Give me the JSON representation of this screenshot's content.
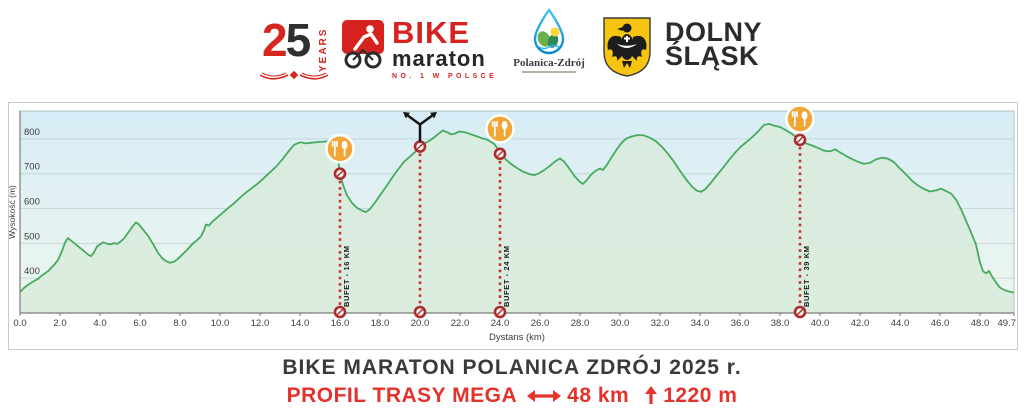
{
  "header": {
    "anniversary": {
      "number_left": "2",
      "number_right": "5",
      "years": "YEARS"
    },
    "bike": {
      "title": "BIKE",
      "subtitle": "maraton",
      "tagline": "NO. 1 W POLSCE"
    },
    "polanica": {
      "name": "Polanica-Zdrój"
    },
    "dolny": {
      "line1": "DOLNY",
      "line2": "ŚLĄSK"
    }
  },
  "footer": {
    "title": "BIKE MARATON POLANICA ZDRÓJ 2025 r.",
    "subtitle": "PROFIL TRASY MEGA",
    "distance": "48 km",
    "elevation_gain": "1220 m"
  },
  "chart_data": {
    "type": "area",
    "xlabel": "Dystans  (km)",
    "ylabel": "Wysokość (m)",
    "xlim": [
      0,
      49.7
    ],
    "ylim": [
      300,
      880
    ],
    "x_ticks": [
      0,
      2,
      4,
      6,
      8,
      10,
      12,
      14,
      16,
      18,
      20,
      22,
      24,
      26,
      28,
      30,
      32,
      34,
      36,
      38,
      40,
      42,
      44,
      46,
      48,
      49.7
    ],
    "y_ticks": [
      400,
      500,
      600,
      700,
      800
    ],
    "grid": true,
    "colors": {
      "line": "#46ab5e",
      "fill": "#d9ecdd",
      "bg_top": "#d7ecf6",
      "bg_bottom": "#eef7ef",
      "marker": "#c5312b",
      "dot_ring": "#ad2a2d",
      "buffet": "#f2a434",
      "grid": "#c6d6da"
    },
    "markers": [
      {
        "km": 16,
        "elevation": 700,
        "type": "buffet",
        "label": "BUFET - 16 KM"
      },
      {
        "km": 20,
        "elevation": 778,
        "type": "junction",
        "label": ""
      },
      {
        "km": 24,
        "elevation": 757,
        "type": "buffet",
        "label": "BUFET - 24 KM"
      },
      {
        "km": 39,
        "elevation": 797,
        "type": "buffet",
        "label": "BUFET - 39 KM"
      }
    ],
    "points": [
      [
        0,
        360
      ],
      [
        0.2,
        372
      ],
      [
        0.45,
        383
      ],
      [
        0.7,
        392
      ],
      [
        0.9,
        398
      ],
      [
        1.1,
        408
      ],
      [
        1.4,
        420
      ],
      [
        1.7,
        438
      ],
      [
        1.9,
        452
      ],
      [
        2.1,
        478
      ],
      [
        2.25,
        502
      ],
      [
        2.4,
        515
      ],
      [
        2.55,
        508
      ],
      [
        2.75,
        499
      ],
      [
        3,
        487
      ],
      [
        3.2,
        478
      ],
      [
        3.4,
        468
      ],
      [
        3.55,
        463
      ],
      [
        3.7,
        474
      ],
      [
        3.85,
        491
      ],
      [
        4,
        497
      ],
      [
        4.15,
        503
      ],
      [
        4.35,
        499
      ],
      [
        4.55,
        497
      ],
      [
        4.7,
        501
      ],
      [
        4.85,
        498
      ],
      [
        5,
        504
      ],
      [
        5.2,
        514
      ],
      [
        5.45,
        534
      ],
      [
        5.65,
        550
      ],
      [
        5.8,
        560
      ],
      [
        5.95,
        554
      ],
      [
        6.15,
        540
      ],
      [
        6.4,
        522
      ],
      [
        6.65,
        498
      ],
      [
        6.9,
        473
      ],
      [
        7.1,
        458
      ],
      [
        7.3,
        449
      ],
      [
        7.5,
        444
      ],
      [
        7.7,
        447
      ],
      [
        7.9,
        456
      ],
      [
        8.1,
        467
      ],
      [
        8.35,
        481
      ],
      [
        8.6,
        497
      ],
      [
        8.85,
        509
      ],
      [
        9.05,
        520
      ],
      [
        9.2,
        538
      ],
      [
        9.3,
        554
      ],
      [
        9.45,
        551
      ],
      [
        9.6,
        561
      ],
      [
        9.8,
        571
      ],
      [
        10.1,
        586
      ],
      [
        10.4,
        601
      ],
      [
        10.7,
        615
      ],
      [
        11,
        631
      ],
      [
        11.3,
        646
      ],
      [
        11.6,
        659
      ],
      [
        11.9,
        672
      ],
      [
        12.2,
        688
      ],
      [
        12.5,
        704
      ],
      [
        12.8,
        720
      ],
      [
        13.1,
        740
      ],
      [
        13.4,
        762
      ],
      [
        13.7,
        783
      ],
      [
        14,
        790
      ],
      [
        14.3,
        787
      ],
      [
        14.6,
        789
      ],
      [
        14.9,
        791
      ],
      [
        15.2,
        792
      ],
      [
        15.45,
        794
      ],
      [
        15.6,
        788
      ],
      [
        15.75,
        773
      ],
      [
        15.9,
        742
      ],
      [
        16,
        700
      ],
      [
        16.15,
        668
      ],
      [
        16.35,
        638
      ],
      [
        16.6,
        616
      ],
      [
        16.85,
        602
      ],
      [
        17.1,
        594
      ],
      [
        17.3,
        590
      ],
      [
        17.5,
        599
      ],
      [
        17.75,
        617
      ],
      [
        18,
        638
      ],
      [
        18.3,
        662
      ],
      [
        18.6,
        688
      ],
      [
        18.9,
        712
      ],
      [
        19.2,
        734
      ],
      [
        19.5,
        749
      ],
      [
        19.75,
        762
      ],
      [
        20,
        778
      ],
      [
        20.2,
        786
      ],
      [
        20.45,
        794
      ],
      [
        20.7,
        804
      ],
      [
        20.95,
        816
      ],
      [
        21.15,
        824
      ],
      [
        21.35,
        819
      ],
      [
        21.55,
        813
      ],
      [
        21.75,
        815
      ],
      [
        21.95,
        821
      ],
      [
        22.15,
        820
      ],
      [
        22.35,
        817
      ],
      [
        22.6,
        812
      ],
      [
        22.85,
        807
      ],
      [
        23.1,
        802
      ],
      [
        23.3,
        799
      ],
      [
        23.5,
        793
      ],
      [
        23.7,
        786
      ],
      [
        23.85,
        774
      ],
      [
        24,
        757
      ],
      [
        24.25,
        743
      ],
      [
        24.55,
        728
      ],
      [
        24.85,
        716
      ],
      [
        25.15,
        706
      ],
      [
        25.45,
        699
      ],
      [
        25.7,
        696
      ],
      [
        25.95,
        701
      ],
      [
        26.2,
        710
      ],
      [
        26.5,
        723
      ],
      [
        26.8,
        737
      ],
      [
        27,
        744
      ],
      [
        27.2,
        735
      ],
      [
        27.45,
        716
      ],
      [
        27.75,
        691
      ],
      [
        28,
        676
      ],
      [
        28.15,
        671
      ],
      [
        28.3,
        679
      ],
      [
        28.55,
        697
      ],
      [
        28.8,
        709
      ],
      [
        29,
        715
      ],
      [
        29.15,
        711
      ],
      [
        29.35,
        726
      ],
      [
        29.6,
        749
      ],
      [
        29.85,
        771
      ],
      [
        30.1,
        790
      ],
      [
        30.35,
        802
      ],
      [
        30.6,
        807
      ],
      [
        30.9,
        811
      ],
      [
        31.2,
        810
      ],
      [
        31.5,
        803
      ],
      [
        31.8,
        793
      ],
      [
        32.1,
        777
      ],
      [
        32.4,
        757
      ],
      [
        32.7,
        734
      ],
      [
        33,
        708
      ],
      [
        33.3,
        684
      ],
      [
        33.6,
        663
      ],
      [
        33.85,
        651
      ],
      [
        34.05,
        648
      ],
      [
        34.25,
        655
      ],
      [
        34.55,
        674
      ],
      [
        34.85,
        696
      ],
      [
        35.15,
        717
      ],
      [
        35.45,
        739
      ],
      [
        35.75,
        760
      ],
      [
        36.05,
        778
      ],
      [
        36.35,
        792
      ],
      [
        36.65,
        807
      ],
      [
        36.95,
        824
      ],
      [
        37.2,
        840
      ],
      [
        37.45,
        843
      ],
      [
        37.7,
        838
      ],
      [
        38,
        834
      ],
      [
        38.3,
        825
      ],
      [
        38.6,
        814
      ],
      [
        38.8,
        805
      ],
      [
        39,
        797
      ],
      [
        39.3,
        787
      ],
      [
        39.6,
        781
      ],
      [
        39.9,
        774
      ],
      [
        40.2,
        766
      ],
      [
        40.5,
        764
      ],
      [
        40.75,
        770
      ],
      [
        41,
        761
      ],
      [
        41.3,
        751
      ],
      [
        41.6,
        742
      ],
      [
        41.9,
        734
      ],
      [
        42.2,
        728
      ],
      [
        42.5,
        731
      ],
      [
        42.8,
        741
      ],
      [
        43.1,
        746
      ],
      [
        43.4,
        743
      ],
      [
        43.7,
        733
      ],
      [
        44,
        715
      ],
      [
        44.3,
        698
      ],
      [
        44.6,
        680
      ],
      [
        44.9,
        666
      ],
      [
        45.2,
        656
      ],
      [
        45.5,
        649
      ],
      [
        45.8,
        652
      ],
      [
        46.05,
        657
      ],
      [
        46.3,
        650
      ],
      [
        46.55,
        643
      ],
      [
        46.8,
        626
      ],
      [
        47.05,
        598
      ],
      [
        47.3,
        565
      ],
      [
        47.55,
        532
      ],
      [
        47.8,
        496
      ],
      [
        48,
        445
      ],
      [
        48.15,
        420
      ],
      [
        48.3,
        414
      ],
      [
        48.45,
        421
      ],
      [
        48.6,
        405
      ],
      [
        48.8,
        388
      ],
      [
        49,
        373
      ],
      [
        49.25,
        365
      ],
      [
        49.5,
        361
      ],
      [
        49.7,
        359
      ]
    ]
  }
}
